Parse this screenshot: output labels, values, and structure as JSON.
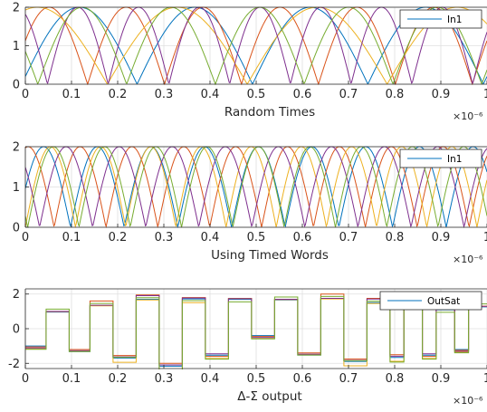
{
  "chart_data": [
    {
      "type": "line",
      "xlabel": "Random Times",
      "x_exponent": "×10⁻⁶",
      "xlim": [
        0,
        1.0
      ],
      "ylim": [
        0,
        2
      ],
      "xticks": [
        "0",
        "0.1",
        "0.2",
        "0.3",
        "0.4",
        "0.5",
        "0.6",
        "0.7",
        "0.8",
        "0.9",
        "1"
      ],
      "yticks": [
        "0",
        "1",
        "2"
      ],
      "grid": true,
      "legend": {
        "entries": [
          "In1"
        ],
        "placement": "top-right"
      },
      "signal": "rectified-sine",
      "series": [
        {
          "color": "#0072BD",
          "freq_mhz": 4.0,
          "phase": 0.1
        },
        {
          "color": "#D95319",
          "freq_mhz": 6.0,
          "phase": 0.6
        },
        {
          "color": "#EDB120",
          "freq_mhz": 3.3,
          "phase": 1.3
        },
        {
          "color": "#7E2F8E",
          "freq_mhz": 7.6,
          "phase": 2.0
        },
        {
          "color": "#77AC30",
          "freq_mhz": 5.2,
          "phase": 2.7
        }
      ]
    },
    {
      "type": "line",
      "xlabel": "Using Timed Words",
      "x_exponent": "×10⁻⁶",
      "xlim": [
        0,
        1.0
      ],
      "ylim": [
        0,
        2
      ],
      "xticks": [
        "0",
        "0.1",
        "0.2",
        "0.3",
        "0.4",
        "0.5",
        "0.6",
        "0.7",
        "0.8",
        "0.9",
        "1"
      ],
      "yticks": [
        "0",
        "1",
        "2"
      ],
      "grid": true,
      "legend": {
        "entries": [
          "In1"
        ],
        "placement": "top-right"
      },
      "signal": "rectified-sine",
      "series": [
        {
          "color": "#0072BD",
          "freq_mhz": 8.6,
          "phase": 0.5
        },
        {
          "color": "#D95319",
          "freq_mhz": 8.9,
          "phase": 1.4
        },
        {
          "color": "#EDB120",
          "freq_mhz": 9.2,
          "phase": 0.0
        },
        {
          "color": "#7E2F8E",
          "freq_mhz": 8.7,
          "phase": 2.3
        },
        {
          "color": "#77AC30",
          "freq_mhz": 9.0,
          "phase": 3.0
        }
      ]
    },
    {
      "type": "line",
      "xlabel": "Δ-Σ output",
      "x_exponent": "×10⁻⁶",
      "xlim": [
        0,
        1.0
      ],
      "ylim": [
        -2.3,
        2.3
      ],
      "xticks": [
        "0",
        "0.1",
        "0.2",
        "0.3",
        "0.4",
        "0.5",
        "0.6",
        "0.7",
        "0.8",
        "0.9",
        "1"
      ],
      "yticks": [
        "-2",
        "0",
        "2"
      ],
      "grid": true,
      "legend": {
        "entries": [
          "OutSat"
        ],
        "placement": "top-right"
      },
      "signal": "staircase",
      "step_x": [
        -0.02,
        0.045,
        0.095,
        0.14,
        0.19,
        0.24,
        0.29,
        0.34,
        0.39,
        0.44,
        0.49,
        0.54,
        0.59,
        0.64,
        0.69,
        0.74,
        0.79,
        0.82,
        0.86,
        0.89,
        0.93,
        0.96,
        1.0
      ],
      "step_levels": [
        -1.0,
        0.9,
        -1.2,
        1.3,
        -1.6,
        1.7,
        -2.1,
        1.6,
        -1.5,
        1.6,
        -0.4,
        1.6,
        -1.4,
        1.7,
        -1.8,
        1.5,
        -1.6,
        1.3,
        -1.5,
        1.0,
        -1.2,
        1.2
      ],
      "series": [
        {
          "color": "#0072BD",
          "offset": 0.0,
          "wobble": 0.15
        },
        {
          "color": "#D95319",
          "offset": 0.1,
          "wobble": 0.25
        },
        {
          "color": "#EDB120",
          "offset": -0.1,
          "wobble": 0.3
        },
        {
          "color": "#7E2F8E",
          "offset": 0.05,
          "wobble": 0.2
        },
        {
          "color": "#77AC30",
          "offset": -0.05,
          "wobble": 0.35
        }
      ]
    }
  ]
}
